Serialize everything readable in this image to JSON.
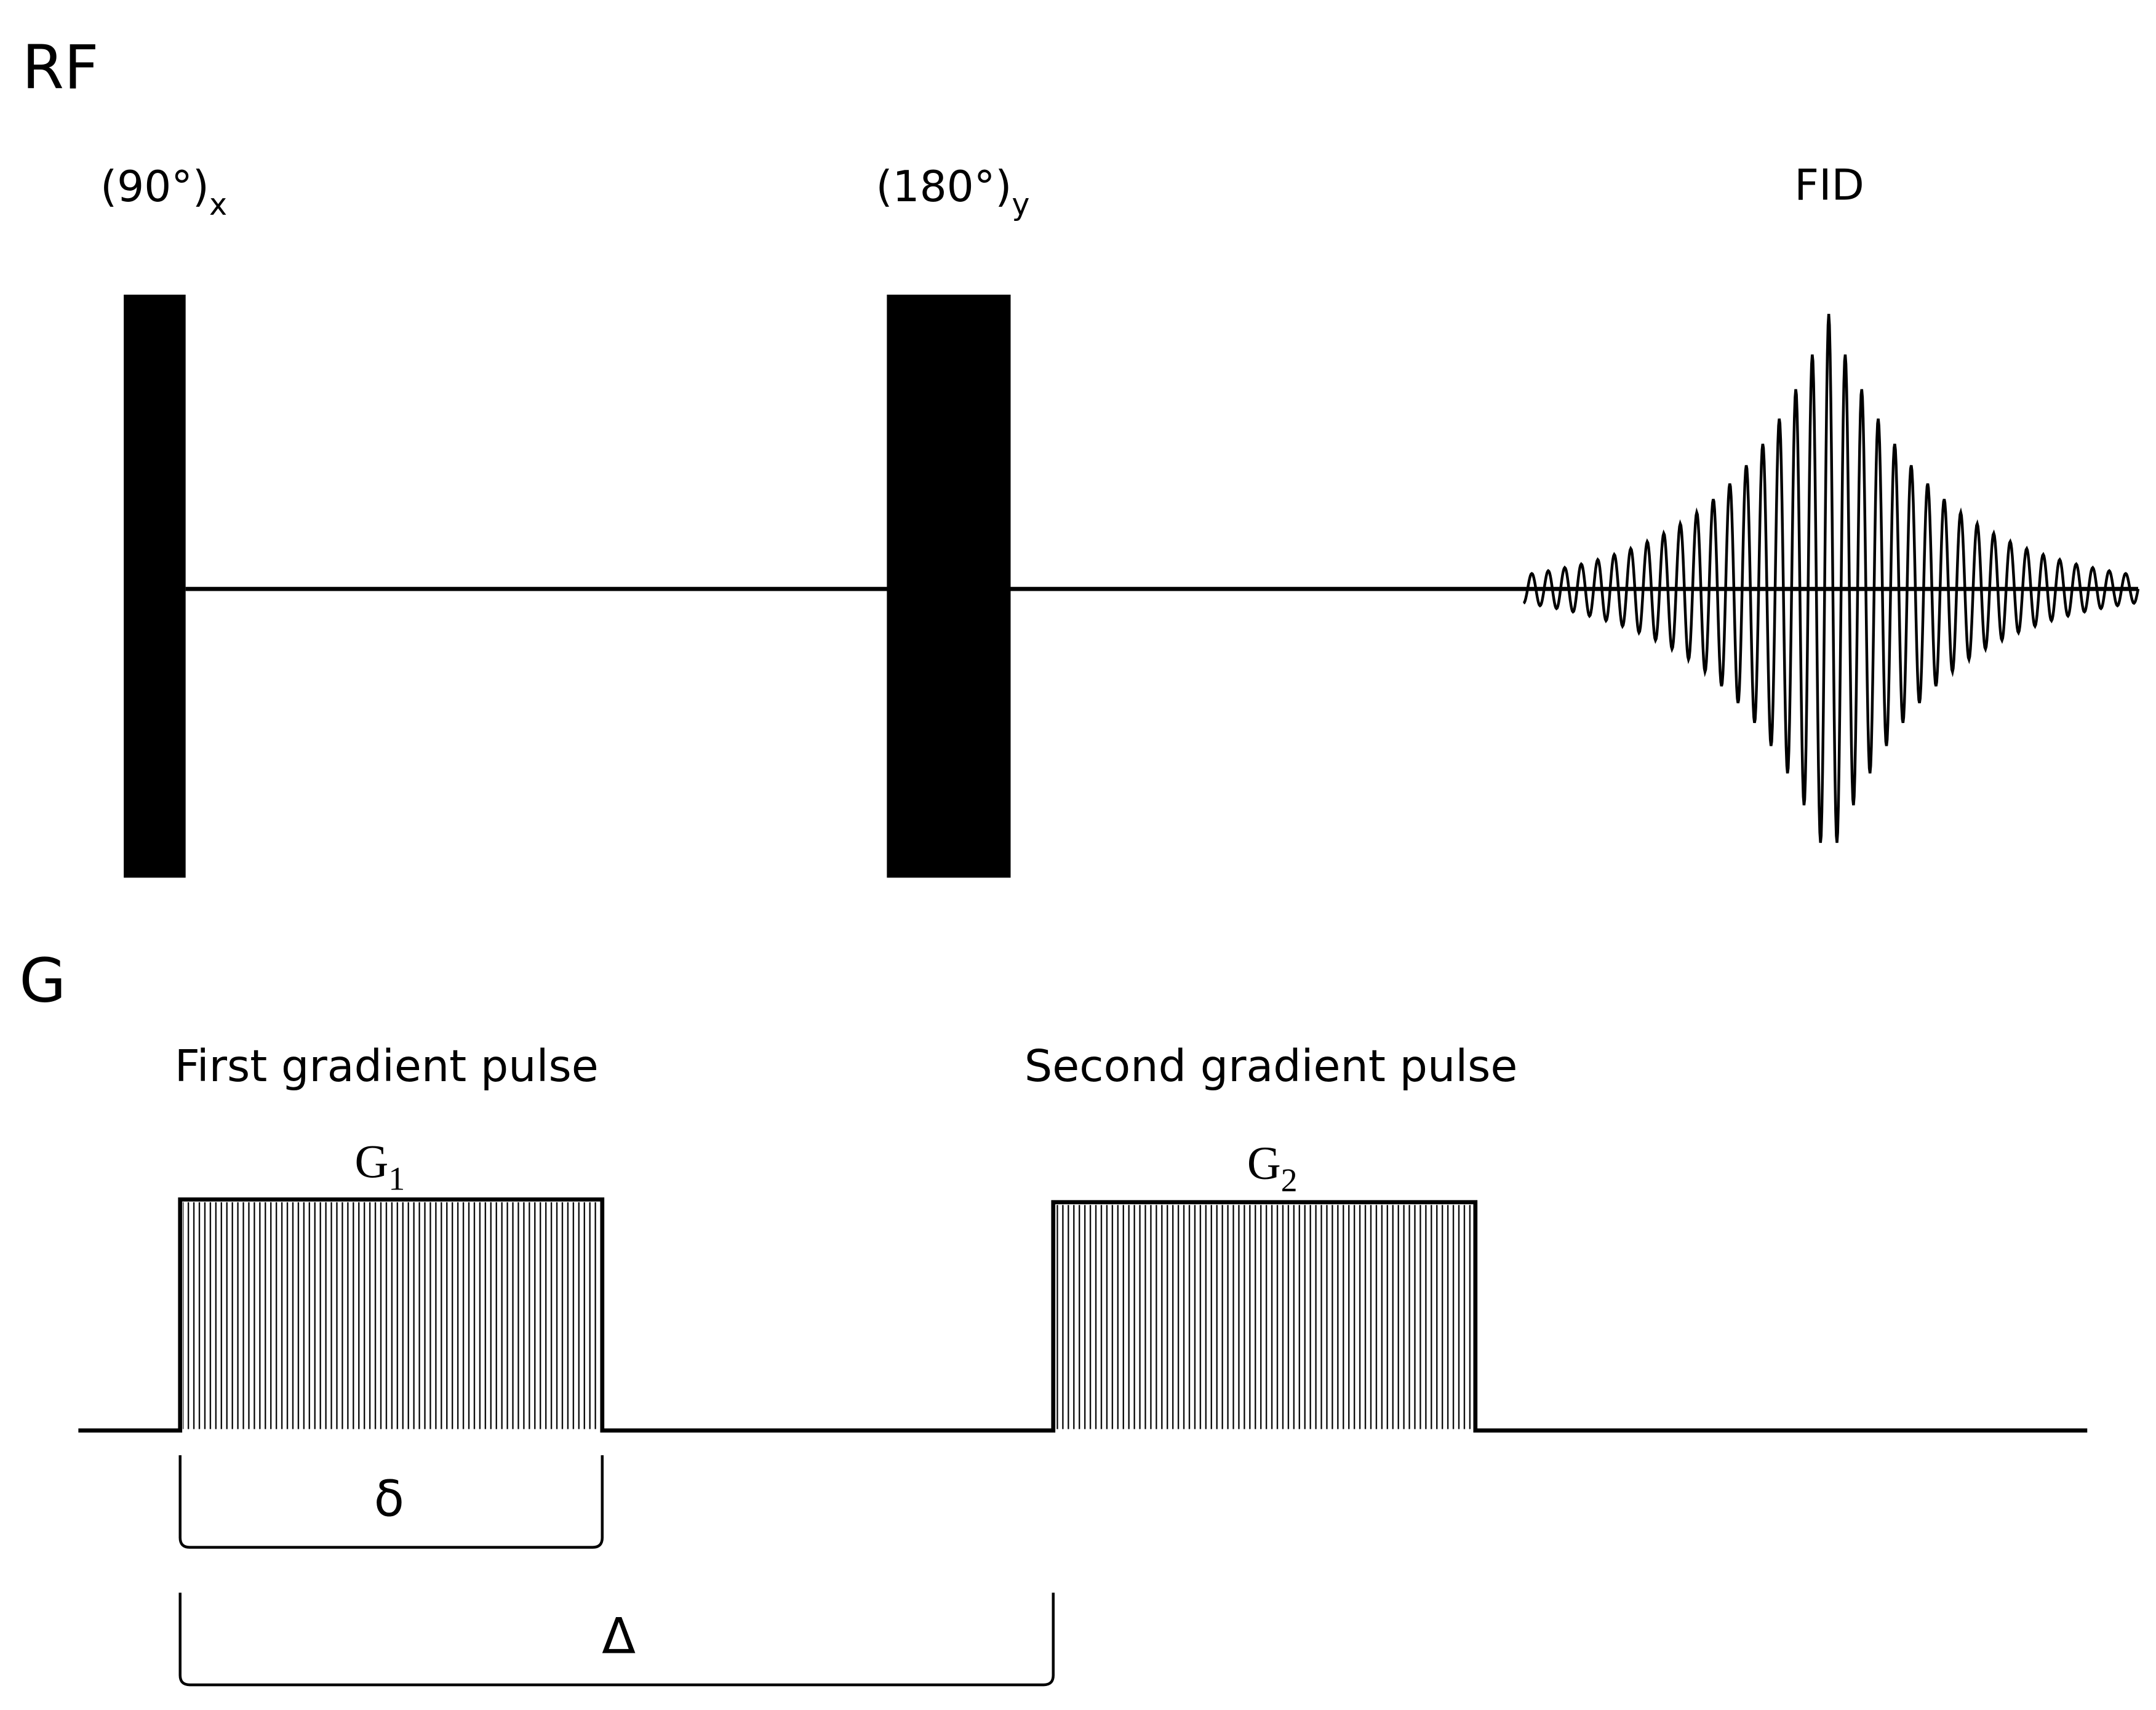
{
  "rf": {
    "label": "RF",
    "pulses": [
      {
        "label": "(90°)",
        "subscript": "x"
      },
      {
        "label": "(180°)",
        "subscript": "y"
      }
    ],
    "signal": "FID"
  },
  "gradient": {
    "label": "G",
    "pulses": [
      {
        "caption": "First gradient pulse",
        "name": "G",
        "subscript": "1"
      },
      {
        "caption": "Second gradient pulse",
        "name": "G",
        "subscript": "2"
      }
    ],
    "pulse_duration": "δ",
    "pulse_separation": "Δ"
  }
}
